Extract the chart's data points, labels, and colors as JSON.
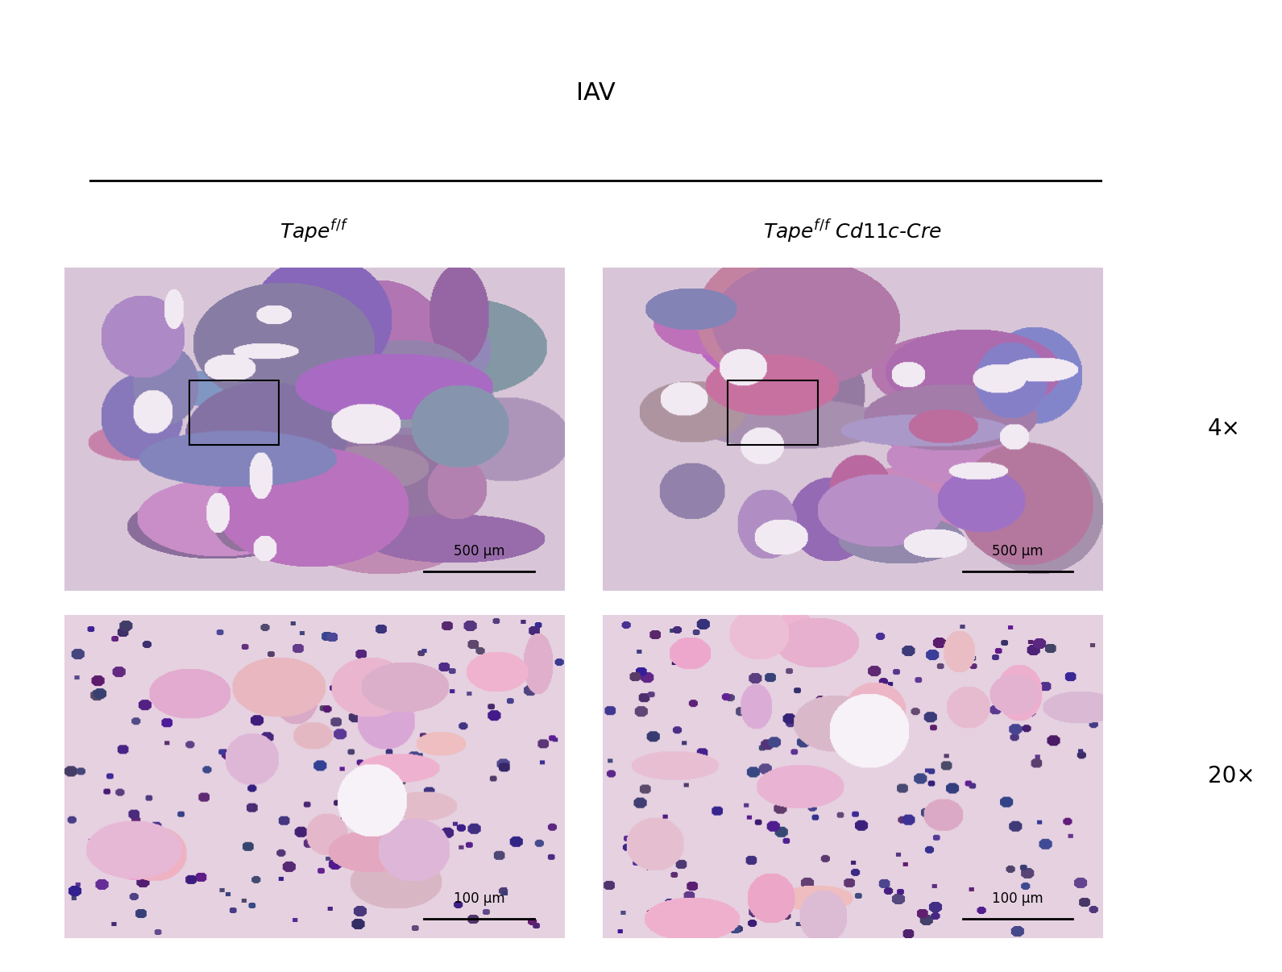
{
  "title": "IAV",
  "col_labels": [
    "$\\mathit{Tape}^{f/f}$",
    "$\\mathit{Tape}^{f/f}$ $\\mathit{Cd11c}$-$\\mathit{Cre}$"
  ],
  "row_labels": [
    "4×",
    "20×"
  ],
  "scale_bars": [
    [
      "500 μm",
      "500 μm"
    ],
    [
      "100 μm",
      "100 μm"
    ]
  ],
  "bg_color": "#ffffff",
  "line_color": "#000000",
  "title_fontsize": 22,
  "col_label_fontsize": 18,
  "row_label_fontsize": 20,
  "scale_bar_fontsize": 12,
  "figure_width": 15.91,
  "figure_height": 12.06,
  "image_colors": [
    [
      "#c9a8c8",
      "#b89ab8"
    ],
    [
      "#c9a8c8",
      "#c09ab8"
    ]
  ]
}
